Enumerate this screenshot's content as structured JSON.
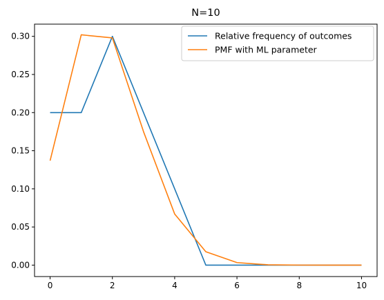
{
  "chart_data": {
    "type": "line",
    "title": "N=10",
    "xlabel": "",
    "ylabel": "",
    "xlim": [
      -0.5,
      10.5
    ],
    "ylim": [
      -0.015,
      0.316
    ],
    "x_ticks": [
      0,
      2,
      4,
      6,
      8,
      10
    ],
    "y_ticks": [
      0.0,
      0.05,
      0.1,
      0.15,
      0.2,
      0.25,
      0.3
    ],
    "x_tick_labels": [
      "0",
      "2",
      "4",
      "6",
      "8",
      "10"
    ],
    "y_tick_labels": [
      "0.00",
      "0.05",
      "0.10",
      "0.15",
      "0.20",
      "0.25",
      "0.30"
    ],
    "grid": false,
    "legend_position": "top-right",
    "x": [
      0,
      1,
      2,
      3,
      4,
      5,
      6,
      7,
      8,
      9,
      10
    ],
    "series": [
      {
        "name": "Relative frequency of outcomes",
        "color": "#1f77b4",
        "values": [
          0.2,
          0.2,
          0.3,
          0.2,
          0.1,
          0.0,
          0.0,
          0.0,
          0.0,
          0.0,
          0.0
        ]
      },
      {
        "name": "PMF with ML parameter",
        "color": "#ff7f0e",
        "values": [
          0.137,
          0.302,
          0.298,
          0.175,
          0.067,
          0.0176,
          0.0033,
          0.0004,
          4e-05,
          0.0,
          0.0
        ]
      }
    ]
  }
}
